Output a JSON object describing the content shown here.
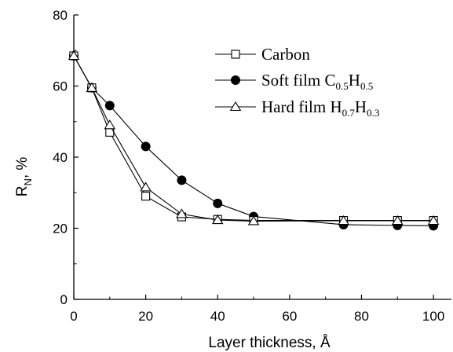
{
  "chart_data": {
    "type": "line",
    "xlabel": "Layer thickness, Å",
    "ylabel_main": "R",
    "ylabel_sub": "N",
    "ylabel_tail": ", %",
    "xlim": [
      0,
      105
    ],
    "ylim": [
      0,
      80
    ],
    "xticks": [
      0,
      20,
      40,
      60,
      80,
      100
    ],
    "yticks": [
      0,
      20,
      40,
      60,
      80
    ],
    "legend_position": "top-right",
    "grid": false,
    "series": [
      {
        "label_main": "Carbon",
        "label_sub1": "",
        "label_mid": "",
        "label_sub2": "",
        "marker": "open-square",
        "x": [
          0,
          5,
          10,
          20,
          30,
          40,
          50,
          75,
          90,
          100
        ],
        "y": [
          68.5,
          59.5,
          47,
          29,
          23.2,
          22.5,
          22.2,
          22.2,
          22.2,
          22.2
        ]
      },
      {
        "label_main": "Soft film C",
        "label_sub1": "0.5",
        "label_mid": "H",
        "label_sub2": "0.5",
        "marker": "filled-circle",
        "x": [
          0,
          5,
          10,
          20,
          30,
          40,
          50,
          75,
          90,
          100
        ],
        "y": [
          68.5,
          59.5,
          54.5,
          43,
          33.5,
          27,
          23.3,
          21,
          20.8,
          20.7
        ]
      },
      {
        "label_main": "Hard film H",
        "label_sub1": "0.7",
        "label_mid": "H",
        "label_sub2": "0.3",
        "marker": "open-triangle",
        "x": [
          0,
          5,
          10,
          20,
          30,
          40,
          50,
          75,
          90,
          100
        ],
        "y": [
          68.5,
          59.5,
          49,
          31.5,
          24,
          22.3,
          22,
          22.1,
          22.1,
          22.1
        ]
      }
    ]
  }
}
